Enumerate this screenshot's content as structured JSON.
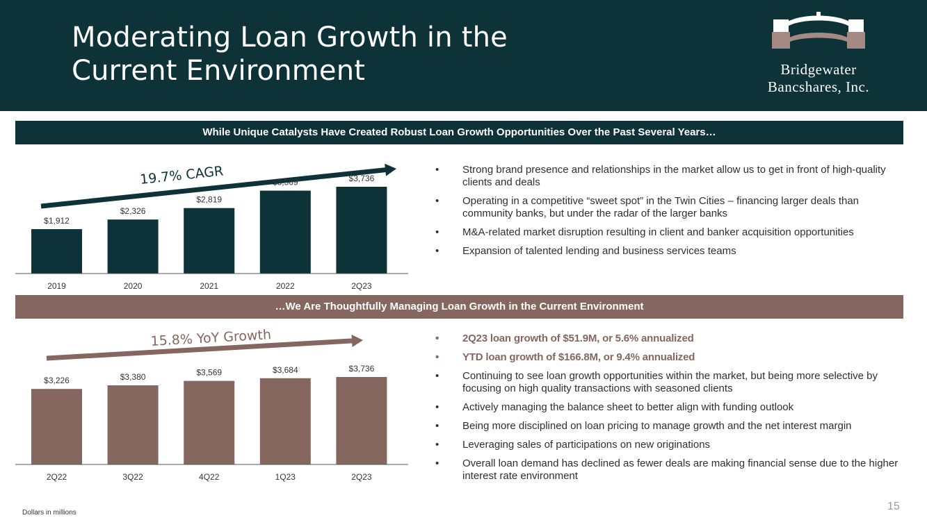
{
  "title": {
    "line1": "Moderating Loan Growth in the",
    "line2": "Current Environment"
  },
  "logo": {
    "line1": "Bridgewater",
    "line2": "Bancshares, Inc."
  },
  "colors": {
    "navy": "#0d3338",
    "mauve": "#85675f",
    "white": "#ffffff"
  },
  "section_top": {
    "banner": "While Unique Catalysts Have Created Robust Loan Growth Opportunities Over the Past Several Years…",
    "trend_label": "19.7% CAGR",
    "bullets": [
      "Strong brand presence and relationships in the market allow us to get in front of high-quality clients and deals",
      "Operating in a competitive “sweet spot” in the Twin Cities – financing larger deals than community banks, but under the radar of the larger banks",
      "M&A-related market disruption resulting in client and banker acquisition opportunities",
      "Expansion of talented lending and business services teams"
    ]
  },
  "section_bottom": {
    "banner": "…We Are Thoughtfully Managing Loan Growth in the Current Environment",
    "trend_label": "15.8% YoY Growth",
    "highlight_bullets": [
      "2Q23 loan growth of $51.9M, or 5.6% annualized",
      "YTD loan growth of $166.8M, or 9.4% annualized"
    ],
    "bullets": [
      "Continuing to see loan growth opportunities within the market, but being more selective by focusing on high quality transactions with seasoned clients",
      "Actively managing the balance sheet to better align with funding outlook",
      "Being more disciplined on loan pricing to manage growth and the net interest margin",
      "Leveraging sales of participations on new originations",
      "Overall loan demand has declined as fewer deals are making financial sense due to the higher interest rate environment"
    ]
  },
  "bullet_glyph": "•",
  "footnote": "Dollars in millions",
  "page_number": "15",
  "chart_data": [
    {
      "type": "bar",
      "categories": [
        "2019",
        "2020",
        "2021",
        "2022",
        "2Q23"
      ],
      "values": [
        1912,
        2326,
        2819,
        3569,
        3736
      ],
      "data_labels": [
        "$1,912",
        "$2,326",
        "$2,819",
        "$3,569",
        "$3,736"
      ],
      "ylim": [
        0,
        3736
      ],
      "color": "#0d3338",
      "grid": false,
      "annotation": "19.7% CAGR"
    },
    {
      "type": "bar",
      "categories": [
        "2Q22",
        "3Q22",
        "4Q22",
        "1Q23",
        "2Q23"
      ],
      "values": [
        3226,
        3380,
        3569,
        3684,
        3736
      ],
      "data_labels": [
        "$3,226",
        "$3,380",
        "$3,569",
        "$3,684",
        "$3,736"
      ],
      "ylim": [
        0,
        3736
      ],
      "color": "#85675f",
      "grid": false,
      "annotation": "15.8% YoY Growth"
    }
  ]
}
